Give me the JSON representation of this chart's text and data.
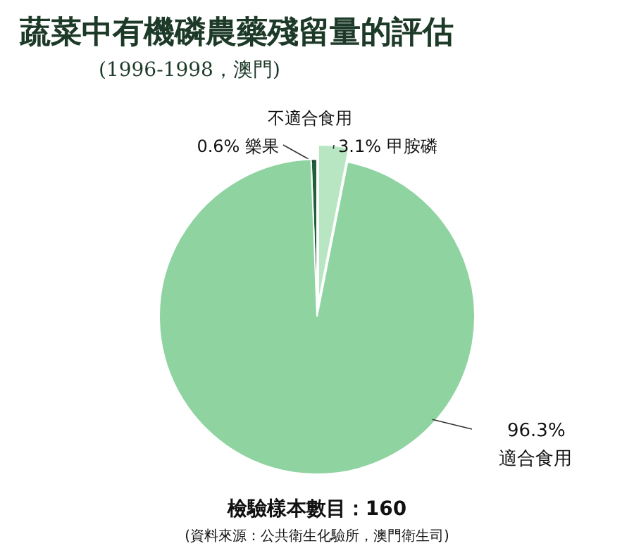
{
  "chart_data": {
    "type": "pie",
    "title": "蔬菜中有機磷農藥殘留量的評估",
    "subtitle": "(1996-1998，澳門)",
    "categories": [
      "樂果",
      "甲胺磷",
      "適合食用"
    ],
    "values": [
      0.6,
      3.1,
      96.3
    ],
    "value_labels": [
      "0.6%",
      "3.1%",
      "96.3%"
    ],
    "colors": [
      "#1f5f3a",
      "#b8e6c2",
      "#8fd3a1"
    ],
    "annotations": [
      "不適合食用",
      "檢驗樣本數目：160",
      "(資料來源：公共衛生化驗所，澳門衛生司)"
    ]
  }
}
